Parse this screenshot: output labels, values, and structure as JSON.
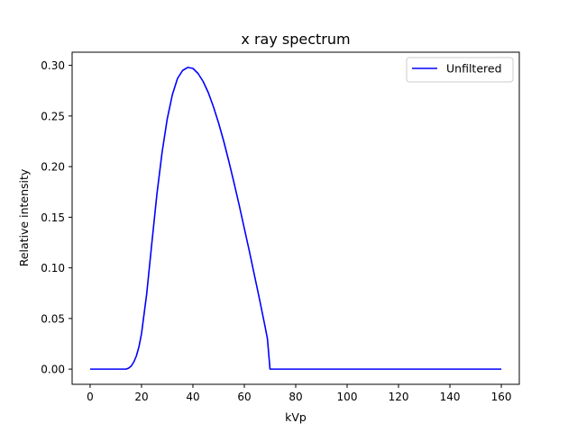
{
  "chart_data": {
    "type": "line",
    "title": "x ray spectrum",
    "xlabel": "kVp",
    "ylabel": "Relative intensity",
    "xlim": [
      -7,
      167
    ],
    "ylim": [
      -0.015,
      0.313
    ],
    "xticks": [
      0,
      20,
      40,
      60,
      80,
      100,
      120,
      140,
      160
    ],
    "yticks": [
      0.0,
      0.05,
      0.1,
      0.15,
      0.2,
      0.25,
      0.3
    ],
    "ytick_labels": [
      "0.00",
      "0.05",
      "0.10",
      "0.15",
      "0.20",
      "0.25",
      "0.30"
    ],
    "grid": false,
    "legend": {
      "position": "top-right",
      "entries": [
        "Unfiltered"
      ]
    },
    "series": [
      {
        "name": "Unfiltered",
        "color": "#0000ff",
        "x": [
          0,
          5,
          10,
          14,
          15,
          16,
          17,
          18,
          19,
          20,
          22,
          24,
          26,
          28,
          30,
          32,
          34,
          36,
          38,
          40,
          42,
          44,
          46,
          48,
          50,
          52,
          54,
          56,
          58,
          60,
          62,
          64,
          66,
          68,
          69,
          70,
          75,
          80,
          90,
          100,
          110,
          120,
          130,
          140,
          150,
          160
        ],
        "y": [
          0,
          0,
          0,
          0,
          0.001,
          0.003,
          0.007,
          0.013,
          0.022,
          0.035,
          0.074,
          0.124,
          0.173,
          0.214,
          0.247,
          0.271,
          0.287,
          0.295,
          0.298,
          0.297,
          0.292,
          0.284,
          0.273,
          0.259,
          0.243,
          0.225,
          0.205,
          0.184,
          0.162,
          0.139,
          0.116,
          0.092,
          0.068,
          0.043,
          0.03,
          0,
          0,
          0,
          0,
          0,
          0,
          0,
          0,
          0,
          0,
          0
        ]
      }
    ]
  }
}
